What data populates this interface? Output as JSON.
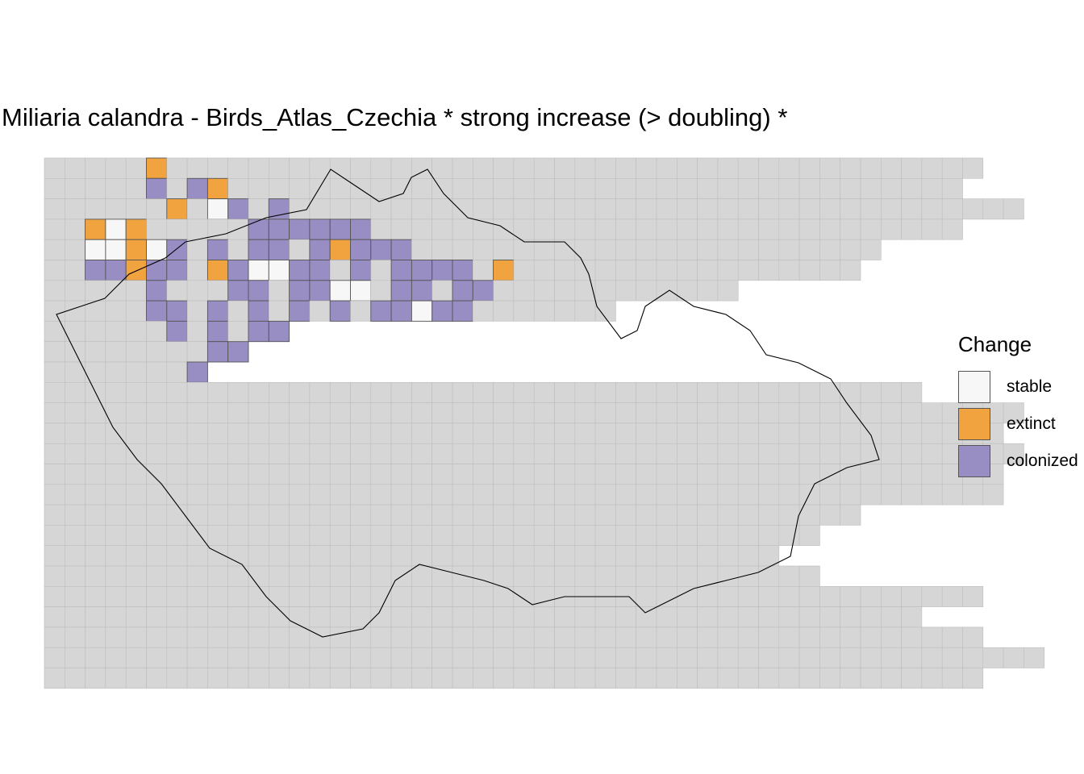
{
  "title": "Miliaria calandra - Birds_Atlas_Czechia * strong increase (> doubling) *",
  "legend": {
    "title": "Change",
    "items": [
      {
        "key": "stable",
        "label": "stable",
        "color": "#f7f7f7"
      },
      {
        "key": "extinct",
        "label": "extinct",
        "color": "#f1a340"
      },
      {
        "key": "colonized",
        "label": "colonized",
        "color": "#998ec3"
      }
    ]
  },
  "colors": {
    "empty_cell": "#d6d6d6",
    "empty_cell_border": "#bdbdbd",
    "filled_cell_border": "#555555",
    "border_line": "#000000"
  },
  "map_data": {
    "grid_rows": [
      "..............................................",
      ".............................................",
      "................................................",
      ".............................................",
      ".........................................",
      "........................................",
      "..................................",
      "............................",
      "............",
      "..........",
      "........",
      "...........................................",
      "................................................",
      "...............................................",
      "................................................",
      "...............................................",
      "...............................................",
      "........................................",
      "......................................",
      "....................................",
      "......................................",
      "..............................................",
      "...........................................",
      "..............................................",
      ".................................................",
      ".............................................."
    ],
    "colonized": [
      [
        1,
        5
      ],
      [
        1,
        7
      ],
      [
        2,
        9
      ],
      [
        2,
        11
      ],
      [
        3,
        10
      ],
      [
        3,
        11
      ],
      [
        3,
        12
      ],
      [
        3,
        13
      ],
      [
        3,
        14
      ],
      [
        3,
        15
      ],
      [
        4,
        6
      ],
      [
        4,
        8
      ],
      [
        4,
        10
      ],
      [
        4,
        11
      ],
      [
        4,
        13
      ],
      [
        4,
        15
      ],
      [
        4,
        16
      ],
      [
        4,
        17
      ],
      [
        5,
        2
      ],
      [
        5,
        3
      ],
      [
        5,
        5
      ],
      [
        5,
        6
      ],
      [
        5,
        9
      ],
      [
        5,
        12
      ],
      [
        5,
        13
      ],
      [
        5,
        15
      ],
      [
        5,
        17
      ],
      [
        5,
        18
      ],
      [
        5,
        19
      ],
      [
        5,
        20
      ],
      [
        6,
        5
      ],
      [
        6,
        9
      ],
      [
        6,
        10
      ],
      [
        6,
        12
      ],
      [
        6,
        13
      ],
      [
        6,
        15
      ],
      [
        6,
        17
      ],
      [
        6,
        18
      ],
      [
        6,
        20
      ],
      [
        6,
        21
      ],
      [
        7,
        5
      ],
      [
        7,
        6
      ],
      [
        7,
        8
      ],
      [
        7,
        10
      ],
      [
        7,
        12
      ],
      [
        7,
        14
      ],
      [
        7,
        16
      ],
      [
        7,
        17
      ],
      [
        7,
        19
      ],
      [
        7,
        20
      ],
      [
        8,
        6
      ],
      [
        8,
        8
      ],
      [
        8,
        10
      ],
      [
        8,
        11
      ],
      [
        8,
        13
      ],
      [
        8,
        14
      ],
      [
        8,
        16
      ],
      [
        8,
        18
      ],
      [
        8,
        19
      ],
      [
        8,
        20
      ],
      [
        9,
        8
      ],
      [
        9,
        9
      ],
      [
        9,
        11
      ],
      [
        9,
        12
      ],
      [
        9,
        14
      ],
      [
        9,
        15
      ],
      [
        9,
        17
      ],
      [
        9,
        18
      ],
      [
        9,
        20
      ],
      [
        9,
        21
      ],
      [
        10,
        7
      ],
      [
        10,
        8
      ],
      [
        10,
        10
      ],
      [
        10,
        11
      ],
      [
        10,
        13
      ],
      [
        10,
        15
      ],
      [
        10,
        16
      ],
      [
        10,
        18
      ],
      [
        10,
        19
      ]
    ],
    "extinct": [
      [
        0,
        5
      ],
      [
        1,
        8
      ],
      [
        2,
        6
      ],
      [
        3,
        2
      ],
      [
        3,
        4
      ],
      [
        4,
        4
      ],
      [
        4,
        14
      ],
      [
        5,
        4
      ],
      [
        5,
        8
      ],
      [
        5,
        22
      ]
    ],
    "stable": [
      [
        2,
        8
      ],
      [
        3,
        3
      ],
      [
        4,
        2
      ],
      [
        4,
        3
      ],
      [
        4,
        5
      ],
      [
        5,
        10
      ],
      [
        5,
        11
      ],
      [
        6,
        14
      ],
      [
        6,
        15
      ],
      [
        7,
        18
      ]
    ],
    "border_path": "M 130 370 L 160 340 L 205 320 L 230 300 L 280 290 L 330 270 L 380 260 L 410 210 L 440 230 L 470 250 L 500 240 L 510 220 L 530 210 L 550 240 L 580 270 L 620 280 L 650 300 L 700 300 L 720 320 L 730 340 L 740 380 L 770 420 L 790 410 L 800 380 L 830 360 L 860 380 L 900 390 L 930 410 L 950 440 L 990 450 L 1030 470 L 1050 500 L 1080 540 L 1090 570 L 1050 580 L 1010 600 L 990 640 L 980 690 L 940 710 L 900 720 L 860 730 L 820 750 L 800 760 L 780 740 L 740 740 L 700 740 L 660 750 L 630 730 L 600 720 L 560 710 L 520 700 L 490 720 L 470 760 L 450 780 L 400 790 L 360 770 L 330 740 L 300 700 L 260 680 L 230 640 L 200 600 L 170 570 L 140 530 L 120 490 L 100 450 L 80 410 L 70 390 L 100 380 Z"
  }
}
